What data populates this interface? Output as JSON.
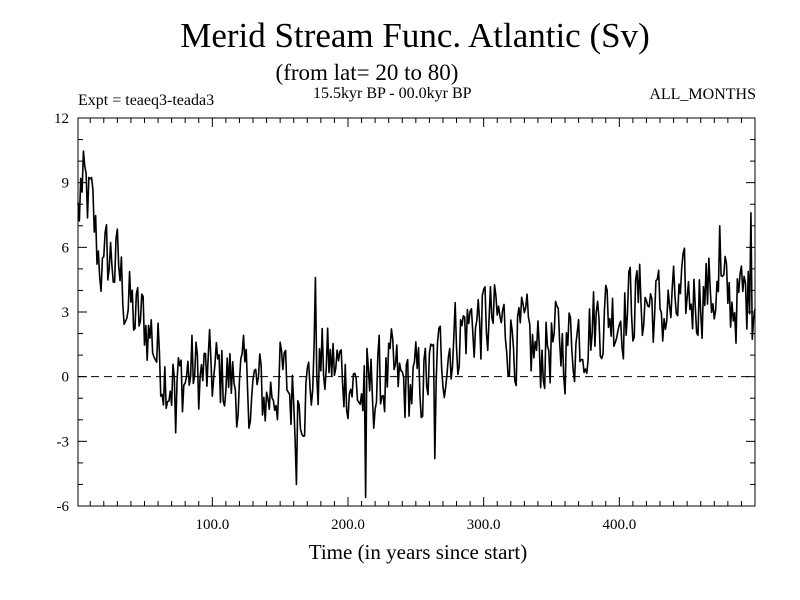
{
  "chart_data": {
    "type": "line",
    "title": "Merid Stream Func. Atlantic (Sv)",
    "subtitle": "(from lat= 20 to 80)",
    "annotations": {
      "experiment": "Expt = teaeq3-teada3",
      "period": "15.5kyr BP - 00.0kyr BP",
      "months": "ALL_MONTHS"
    },
    "xlabel": "Time (in years since start)",
    "ylabel": "",
    "xlim": [
      1,
      500
    ],
    "ylim": [
      -6,
      12
    ],
    "xticks": [
      100,
      200,
      300,
      400
    ],
    "xtick_labels": [
      "100.0",
      "200.0",
      "300.0",
      "400.0"
    ],
    "yticks": [
      -6,
      -3,
      0,
      3,
      6,
      9,
      12
    ],
    "ytick_labels": [
      "-6",
      "-3",
      "0",
      "3",
      "6",
      "9",
      "12"
    ],
    "reference_line": {
      "y": 0,
      "style": "dashed"
    },
    "anchors": [
      [
        1,
        7.5
      ],
      [
        5,
        8.5
      ],
      [
        10,
        8.0
      ],
      [
        15,
        6.0
      ],
      [
        20,
        5.0
      ],
      [
        25,
        5.5
      ],
      [
        30,
        5.0
      ],
      [
        35,
        4.0
      ],
      [
        40,
        3.0
      ],
      [
        45,
        2.5
      ],
      [
        50,
        2.5
      ],
      [
        55,
        2.0
      ],
      [
        60,
        1.0
      ],
      [
        65,
        0.5
      ],
      [
        70,
        0.0
      ],
      [
        75,
        -0.5
      ],
      [
        80,
        0.0
      ],
      [
        85,
        0.3
      ],
      [
        90,
        0.0
      ],
      [
        95,
        0.0
      ],
      [
        100,
        0.0
      ],
      [
        110,
        0.0
      ],
      [
        120,
        -0.5
      ],
      [
        130,
        -0.5
      ],
      [
        140,
        -1.0
      ],
      [
        150,
        0.0
      ],
      [
        160,
        -1.0
      ],
      [
        170,
        -0.5
      ],
      [
        180,
        0.5
      ],
      [
        190,
        0.5
      ],
      [
        200,
        0.0
      ],
      [
        210,
        -1.0
      ],
      [
        220,
        -0.5
      ],
      [
        230,
        0.0
      ],
      [
        240,
        -0.5
      ],
      [
        250,
        -0.5
      ],
      [
        260,
        0.0
      ],
      [
        270,
        1.0
      ],
      [
        280,
        2.0
      ],
      [
        290,
        2.5
      ],
      [
        300,
        2.5
      ],
      [
        310,
        2.5
      ],
      [
        320,
        2.0
      ],
      [
        330,
        1.5
      ],
      [
        340,
        1.0
      ],
      [
        350,
        1.5
      ],
      [
        360,
        1.5
      ],
      [
        370,
        2.0
      ],
      [
        380,
        2.5
      ],
      [
        390,
        3.0
      ],
      [
        400,
        3.0
      ],
      [
        410,
        3.5
      ],
      [
        420,
        3.5
      ],
      [
        430,
        3.0
      ],
      [
        440,
        3.0
      ],
      [
        450,
        3.5
      ],
      [
        460,
        4.0
      ],
      [
        470,
        4.0
      ],
      [
        480,
        3.5
      ],
      [
        490,
        3.5
      ],
      [
        500,
        4.0
      ]
    ],
    "noise_amplitude": 1.5,
    "extrema": [
      [
        3,
        9.2
      ],
      [
        19,
        5.5
      ],
      [
        73,
        -2.6
      ],
      [
        162,
        -5.0
      ],
      [
        176,
        4.6
      ],
      [
        213,
        -5.6
      ],
      [
        264,
        -3.8
      ],
      [
        474,
        7.0
      ],
      [
        497,
        7.6
      ]
    ]
  }
}
